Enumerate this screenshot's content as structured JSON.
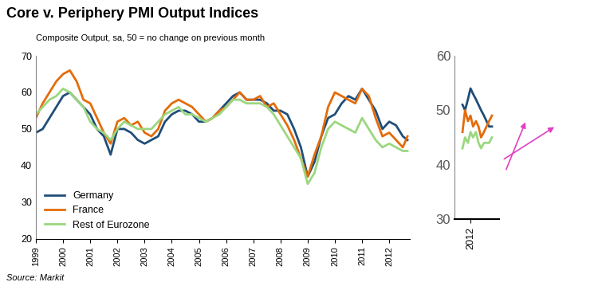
{
  "chart_data": [
    {
      "type": "line",
      "title": "Core v. Periphery PMI Output Indices",
      "subtitle": "Composite Output, sa, 50 = no change on previous month",
      "source": "Source: Markit",
      "legend": "lower left",
      "grid": false,
      "xlim": [
        1999,
        2012.75
      ],
      "xticks": [
        1999,
        2000,
        2001,
        2002,
        2003,
        2004,
        2005,
        2006,
        2007,
        2008,
        2009,
        2010,
        2011,
        2012
      ],
      "ylim": [
        20,
        70
      ],
      "yticks": [
        20,
        30,
        40,
        50,
        60,
        70
      ],
      "x": [
        1999.0,
        1999.25,
        1999.5,
        1999.75,
        2000.0,
        2000.25,
        2000.5,
        2000.75,
        2001.0,
        2001.25,
        2001.5,
        2001.75,
        2002.0,
        2002.25,
        2002.5,
        2002.75,
        2003.0,
        2003.25,
        2003.5,
        2003.75,
        2004.0,
        2004.25,
        2004.5,
        2004.75,
        2005.0,
        2005.25,
        2005.5,
        2005.75,
        2006.0,
        2006.25,
        2006.5,
        2006.75,
        2007.0,
        2007.25,
        2007.5,
        2007.75,
        2008.0,
        2008.25,
        2008.5,
        2008.75,
        2009.0,
        2009.25,
        2009.5,
        2009.75,
        2010.0,
        2010.25,
        2010.5,
        2010.75,
        2011.0,
        2011.25,
        2011.5,
        2011.75,
        2012.0,
        2012.25,
        2012.5,
        2012.67
      ],
      "series": [
        {
          "name": "Germany",
          "color": "#1F4E79",
          "values": [
            49,
            50,
            53,
            56,
            59,
            60,
            58,
            56,
            54,
            50,
            48,
            43,
            50,
            50,
            49,
            47,
            46,
            47,
            48,
            52,
            54,
            55,
            55,
            54,
            52,
            52,
            53,
            55,
            57,
            59,
            60,
            58,
            58,
            58,
            57,
            55,
            55,
            54,
            50,
            45,
            37,
            41,
            48,
            53,
            54,
            57,
            59,
            58,
            61,
            58,
            55,
            50,
            52,
            51,
            48,
            47
          ]
        },
        {
          "name": "France",
          "color": "#E36C0A",
          "values": [
            53,
            57,
            60,
            63,
            65,
            66,
            63,
            58,
            57,
            53,
            49,
            46,
            52,
            53,
            51,
            52,
            49,
            48,
            50,
            55,
            57,
            58,
            57,
            56,
            54,
            52,
            53,
            55,
            56,
            58,
            60,
            58,
            58,
            59,
            56,
            57,
            54,
            51,
            47,
            42,
            37,
            43,
            48,
            56,
            60,
            59,
            58,
            57,
            61,
            59,
            53,
            48,
            49,
            47,
            45,
            48
          ]
        },
        {
          "name": "Rest of Eurozone",
          "color": "#9BD77F",
          "values": [
            54,
            56,
            58,
            59,
            61,
            60,
            58,
            56,
            52,
            50,
            49,
            47,
            50,
            52,
            51,
            50,
            50,
            50,
            52,
            54,
            55,
            56,
            54,
            54,
            53,
            52,
            53,
            54,
            56,
            58,
            58,
            57,
            57,
            57,
            56,
            54,
            51,
            48,
            45,
            42,
            35,
            38,
            45,
            50,
            52,
            51,
            50,
            49,
            53,
            50,
            47,
            45,
            46,
            45,
            44,
            44
          ]
        }
      ]
    },
    {
      "type": "line",
      "grid": false,
      "xlim": [
        2011.5,
        2012.9
      ],
      "xticks": [
        2012
      ],
      "ylim": [
        30,
        60
      ],
      "yticks": [
        30,
        40,
        50,
        60
      ],
      "x": [
        2011.75,
        2011.83,
        2011.92,
        2012.0,
        2012.08,
        2012.17,
        2012.25,
        2012.33,
        2012.42,
        2012.5,
        2012.58,
        2012.67
      ],
      "series": [
        {
          "name": "Germany",
          "color": "#1F4E79",
          "values": [
            51,
            50,
            52,
            54,
            53,
            52,
            51,
            50,
            49,
            48,
            47,
            47
          ]
        },
        {
          "name": "France",
          "color": "#E36C0A",
          "values": [
            46,
            50,
            48,
            49,
            47,
            48,
            47,
            45,
            46,
            47,
            48,
            49
          ]
        },
        {
          "name": "Rest of Eurozone",
          "color": "#9BD77F",
          "values": [
            43,
            45,
            44,
            46,
            45,
            46,
            44,
            43,
            44,
            44,
            44,
            45
          ]
        }
      ]
    }
  ]
}
